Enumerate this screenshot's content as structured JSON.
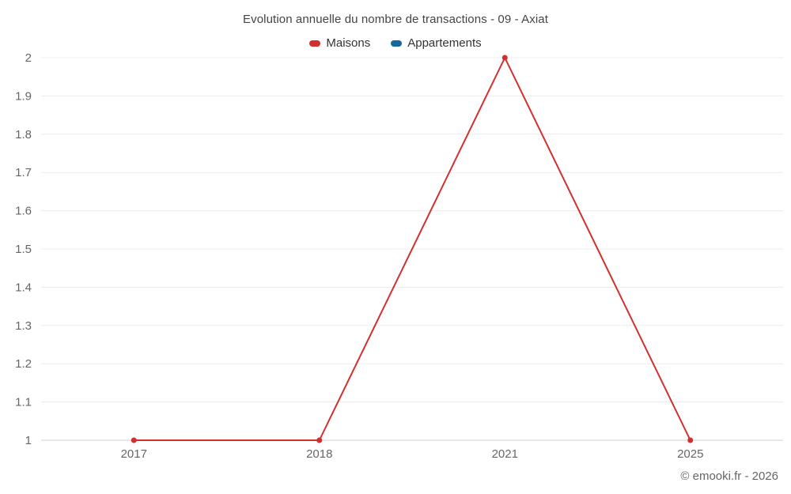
{
  "chart_data": {
    "type": "line",
    "title": "Evolution annuelle du nombre de transactions - 09 - Axiat",
    "categories": [
      "2017",
      "2018",
      "2021",
      "2025"
    ],
    "series": [
      {
        "name": "Maisons",
        "color": "#d2302e",
        "values": [
          1,
          1,
          2,
          1
        ]
      },
      {
        "name": "Appartements",
        "color": "#16689c",
        "values": []
      }
    ],
    "xlabel": "",
    "ylabel": "",
    "ylim": [
      1,
      2
    ],
    "ytick_step": 0.1,
    "yticks": [
      "1",
      "1.1",
      "1.2",
      "1.3",
      "1.4",
      "1.5",
      "1.6",
      "1.7",
      "1.8",
      "1.9",
      "2"
    ],
    "grid": true,
    "gridline_color": "#ececec",
    "axis_line_color": "#d0d0d0",
    "axis_text_color": "#666666",
    "legend_position": "top"
  },
  "footer": {
    "attribution": "© emooki.fr - 2026"
  }
}
